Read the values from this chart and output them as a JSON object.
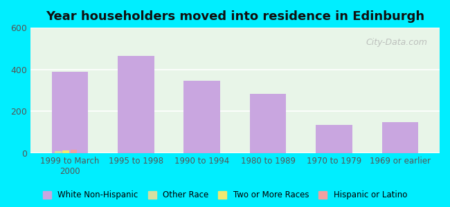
{
  "title": "Year householders moved into residence in Edinburgh",
  "categories": [
    "1999 to March\n2000",
    "1995 to 1998",
    "1990 to 1994",
    "1980 to 1989",
    "1970 to 1979",
    "1969 or earlier"
  ],
  "series": {
    "White Non-Hispanic": [
      390,
      465,
      345,
      285,
      135,
      148
    ],
    "Other Race": [
      10,
      0,
      0,
      0,
      0,
      0
    ],
    "Two or More Races": [
      12,
      0,
      0,
      0,
      0,
      0
    ],
    "Hispanic or Latino": [
      18,
      0,
      0,
      0,
      0,
      0
    ]
  },
  "colors": {
    "White Non-Hispanic": "#c9a6e0",
    "Other Race": "#d4dfa0",
    "Two or More Races": "#f0e870",
    "Hispanic or Latino": "#f0a0a0"
  },
  "ylim": [
    0,
    600
  ],
  "yticks": [
    0,
    200,
    400,
    600
  ],
  "bg_outer": "#00eeff",
  "bg_plot": "#e8f5e8",
  "bg_plot_top": "#ffffff",
  "grid_color": "#ffffff",
  "watermark": "City-Data.com",
  "bar_width": 0.55
}
